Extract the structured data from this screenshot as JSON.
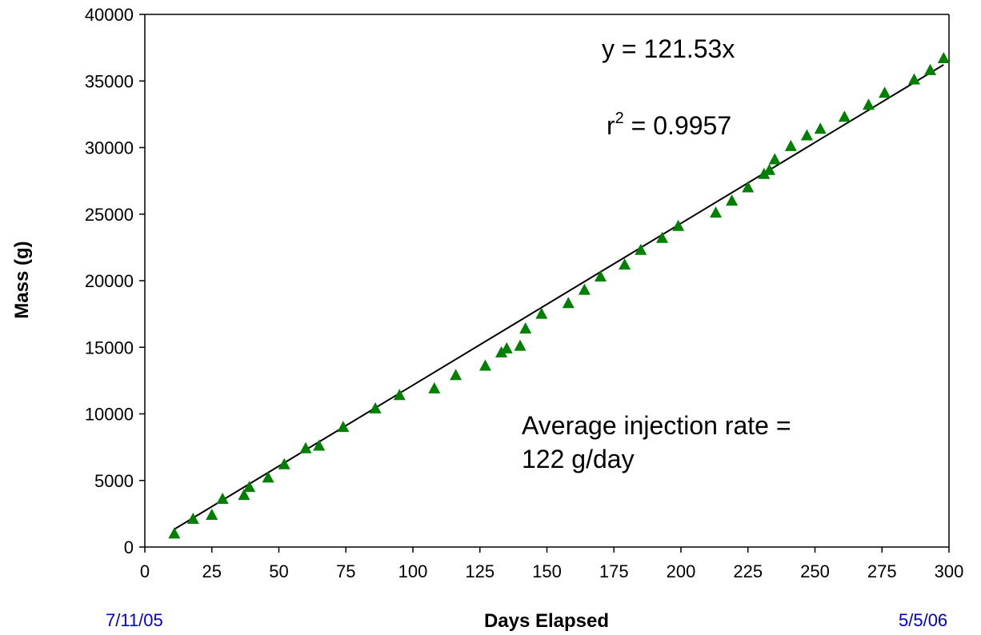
{
  "chart_data": {
    "type": "scatter",
    "xlabel": "Days Elapsed",
    "ylabel": "Mass (g)",
    "xlim": [
      0,
      300
    ],
    "ylim": [
      0,
      40000
    ],
    "x_ticks": [
      0,
      25,
      50,
      75,
      100,
      125,
      150,
      175,
      200,
      225,
      250,
      275,
      300
    ],
    "y_ticks": [
      0,
      5000,
      10000,
      15000,
      20000,
      25000,
      30000,
      35000,
      40000
    ],
    "grid": false,
    "marker_color": "#008000",
    "trendline": {
      "slope": 121.53,
      "intercept": 0,
      "x_range": [
        11,
        298
      ],
      "color": "#000000"
    },
    "equation_label": "y = 121.53x",
    "r2_label": {
      "prefix": "r",
      "sup": "2",
      "rest": " = 0.9957"
    },
    "annotation_lines": [
      "Average injection rate =",
      "122 g/day"
    ],
    "start_date_label": "7/11/05",
    "end_date_label": "5/5/06",
    "date_label_color": "#0000cc",
    "points": [
      [
        11,
        1000
      ],
      [
        18,
        2100
      ],
      [
        25,
        2400
      ],
      [
        29,
        3600
      ],
      [
        37,
        3900
      ],
      [
        39,
        4500
      ],
      [
        46,
        5200
      ],
      [
        52,
        6200
      ],
      [
        60,
        7400
      ],
      [
        65,
        7600
      ],
      [
        74,
        9000
      ],
      [
        86,
        10400
      ],
      [
        95,
        11400
      ],
      [
        108,
        11900
      ],
      [
        116,
        12900
      ],
      [
        127,
        13600
      ],
      [
        133,
        14600
      ],
      [
        135,
        14900
      ],
      [
        140,
        15100
      ],
      [
        142,
        16400
      ],
      [
        148,
        17500
      ],
      [
        158,
        18300
      ],
      [
        164,
        19300
      ],
      [
        170,
        20300
      ],
      [
        179,
        21200
      ],
      [
        185,
        22300
      ],
      [
        193,
        23200
      ],
      [
        199,
        24100
      ],
      [
        213,
        25100
      ],
      [
        219,
        26000
      ],
      [
        225,
        27000
      ],
      [
        231,
        28000
      ],
      [
        233,
        28300
      ],
      [
        235,
        29100
      ],
      [
        241,
        30100
      ],
      [
        247,
        30900
      ],
      [
        252,
        31400
      ],
      [
        261,
        32300
      ],
      [
        270,
        33200
      ],
      [
        276,
        34100
      ],
      [
        287,
        35100
      ],
      [
        293,
        35800
      ],
      [
        298,
        36700
      ]
    ]
  }
}
